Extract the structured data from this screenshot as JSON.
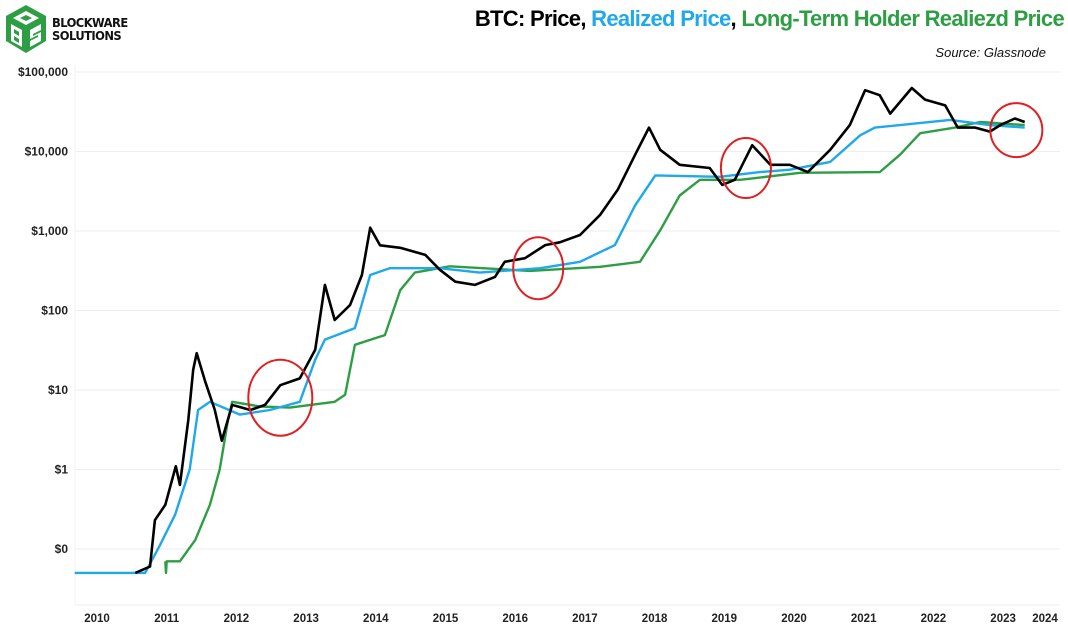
{
  "logo": {
    "line1": "BLOCKWARE",
    "line2": "SOLUTIONS",
    "color": "#2e9e45"
  },
  "header": {
    "title_parts": [
      "BTC: Price",
      ", ",
      "Realized Price",
      ", ",
      "Long-Term Holder Realiezd Price"
    ],
    "source": "Source: Glassnode"
  },
  "chart_data": {
    "type": "line",
    "title": "BTC: Price, Realized Price, Long-Term Holder Realiezd Price",
    "source": "Source: Glassnode",
    "xlabel": "",
    "ylabel": "",
    "y_scale": "log",
    "ylim": [
      0.01,
      100000
    ],
    "xlim": [
      2009.7,
      2024.1
    ],
    "grid": "horizontal",
    "y_ticks": [
      0.1,
      1,
      10,
      100,
      1000,
      10000,
      100000
    ],
    "y_tick_labels": [
      "$0",
      "$1",
      "$10",
      "$100",
      "$1,000",
      "$10,000",
      "$100,000"
    ],
    "x_ticks": [
      2010,
      2011,
      2012,
      2013,
      2014,
      2015,
      2016,
      2017,
      2018,
      2019,
      2020,
      2021,
      2022,
      2023,
      2024
    ],
    "x_tick_labels": [
      "2010",
      "2011",
      "2012",
      "2013",
      "2014",
      "2015",
      "2016",
      "2017",
      "2018",
      "2019",
      "2020",
      "2021",
      "2022",
      "2023",
      "2024"
    ],
    "series": [
      {
        "name": "Price",
        "color": "#000000",
        "points": [
          [
            2010.55,
            0.05
          ],
          [
            2010.76,
            0.06
          ],
          [
            2010.83,
            0.23
          ],
          [
            2010.98,
            0.36
          ],
          [
            2011.13,
            1.1
          ],
          [
            2011.19,
            0.64
          ],
          [
            2011.31,
            4.2
          ],
          [
            2011.38,
            18
          ],
          [
            2011.43,
            29
          ],
          [
            2011.55,
            13
          ],
          [
            2011.69,
            5.6
          ],
          [
            2011.79,
            2.3
          ],
          [
            2011.94,
            6.5
          ],
          [
            2012.2,
            5.6
          ],
          [
            2012.41,
            6.5
          ],
          [
            2012.63,
            11.5
          ],
          [
            2012.91,
            14
          ],
          [
            2013.13,
            32
          ],
          [
            2013.27,
            210
          ],
          [
            2013.41,
            76
          ],
          [
            2013.63,
            117
          ],
          [
            2013.8,
            280
          ],
          [
            2013.92,
            1100
          ],
          [
            2014.06,
            660
          ],
          [
            2014.35,
            615
          ],
          [
            2014.71,
            500
          ],
          [
            2014.92,
            325
          ],
          [
            2015.14,
            230
          ],
          [
            2015.42,
            210
          ],
          [
            2015.71,
            265
          ],
          [
            2015.85,
            410
          ],
          [
            2016.14,
            455
          ],
          [
            2016.43,
            665
          ],
          [
            2016.64,
            720
          ],
          [
            2016.93,
            890
          ],
          [
            2017.22,
            1600
          ],
          [
            2017.47,
            3300
          ],
          [
            2017.72,
            9100
          ],
          [
            2017.92,
            20000
          ],
          [
            2018.08,
            10500
          ],
          [
            2018.36,
            6800
          ],
          [
            2018.79,
            6200
          ],
          [
            2018.97,
            3800
          ],
          [
            2019.15,
            4400
          ],
          [
            2019.4,
            12000
          ],
          [
            2019.66,
            6800
          ],
          [
            2019.94,
            6800
          ],
          [
            2020.2,
            5500
          ],
          [
            2020.52,
            10500
          ],
          [
            2020.8,
            21500
          ],
          [
            2021.02,
            59000
          ],
          [
            2021.23,
            51000
          ],
          [
            2021.38,
            30000
          ],
          [
            2021.69,
            63000
          ],
          [
            2021.88,
            45000
          ],
          [
            2022.17,
            38000
          ],
          [
            2022.35,
            20000
          ],
          [
            2022.6,
            20000
          ],
          [
            2022.81,
            17800
          ],
          [
            2022.96,
            21500
          ],
          [
            2023.17,
            26000
          ],
          [
            2023.31,
            23500
          ]
        ]
      },
      {
        "name": "Realized Price",
        "color": "#1fa8ea",
        "points": [
          [
            2009.68,
            0.05
          ],
          [
            2010.69,
            0.05
          ],
          [
            2010.9,
            0.11
          ],
          [
            2011.12,
            0.27
          ],
          [
            2011.33,
            1.0
          ],
          [
            2011.45,
            5.6
          ],
          [
            2011.62,
            7.1
          ],
          [
            2012.05,
            4.9
          ],
          [
            2012.48,
            5.6
          ],
          [
            2012.91,
            7.1
          ],
          [
            2013.13,
            24
          ],
          [
            2013.27,
            43
          ],
          [
            2013.7,
            60
          ],
          [
            2013.92,
            280
          ],
          [
            2014.2,
            340
          ],
          [
            2014.92,
            340
          ],
          [
            2015.49,
            300
          ],
          [
            2016.36,
            340
          ],
          [
            2016.93,
            410
          ],
          [
            2017.43,
            665
          ],
          [
            2017.72,
            2100
          ],
          [
            2018.01,
            5000
          ],
          [
            2018.94,
            4800
          ],
          [
            2019.51,
            5500
          ],
          [
            2019.94,
            5900
          ],
          [
            2020.52,
            7400
          ],
          [
            2020.95,
            16000
          ],
          [
            2021.16,
            20000
          ],
          [
            2022.24,
            25000
          ],
          [
            2022.81,
            21500
          ],
          [
            2023.31,
            20000
          ]
        ]
      },
      {
        "name": "Long-Term Holder Realiezd Price",
        "color": "#2e9e45",
        "points": [
          [
            2010.98,
            0.07
          ],
          [
            2010.99,
            0.05
          ],
          [
            2011.0,
            0.07
          ],
          [
            2011.19,
            0.07
          ],
          [
            2011.41,
            0.13
          ],
          [
            2011.62,
            0.36
          ],
          [
            2011.76,
            1.0
          ],
          [
            2011.88,
            4.2
          ],
          [
            2011.94,
            7.1
          ],
          [
            2012.34,
            6.2
          ],
          [
            2012.77,
            6.0
          ],
          [
            2013.41,
            7.1
          ],
          [
            2013.56,
            8.7
          ],
          [
            2013.7,
            37
          ],
          [
            2014.13,
            49
          ],
          [
            2014.35,
            180
          ],
          [
            2014.56,
            300
          ],
          [
            2015.06,
            360
          ],
          [
            2016.21,
            315
          ],
          [
            2017.22,
            355
          ],
          [
            2017.79,
            410
          ],
          [
            2018.08,
            1020
          ],
          [
            2018.36,
            2800
          ],
          [
            2018.65,
            4400
          ],
          [
            2019.23,
            4400
          ],
          [
            2020.09,
            5400
          ],
          [
            2021.23,
            5500
          ],
          [
            2021.52,
            9100
          ],
          [
            2021.81,
            17000
          ],
          [
            2022.31,
            20000
          ],
          [
            2022.67,
            23500
          ],
          [
            2023.31,
            21500
          ]
        ]
      }
    ],
    "annotations": [
      {
        "type": "circle",
        "color": "#e02020",
        "year": 2012.63,
        "price": 8
      },
      {
        "type": "circle",
        "color": "#e02020",
        "year": 2016.33,
        "price": 340
      },
      {
        "type": "circle",
        "color": "#e02020",
        "year": 2019.31,
        "price": 6200
      },
      {
        "type": "circle",
        "color": "#e02020",
        "year": 2023.19,
        "price": 18600
      }
    ]
  }
}
